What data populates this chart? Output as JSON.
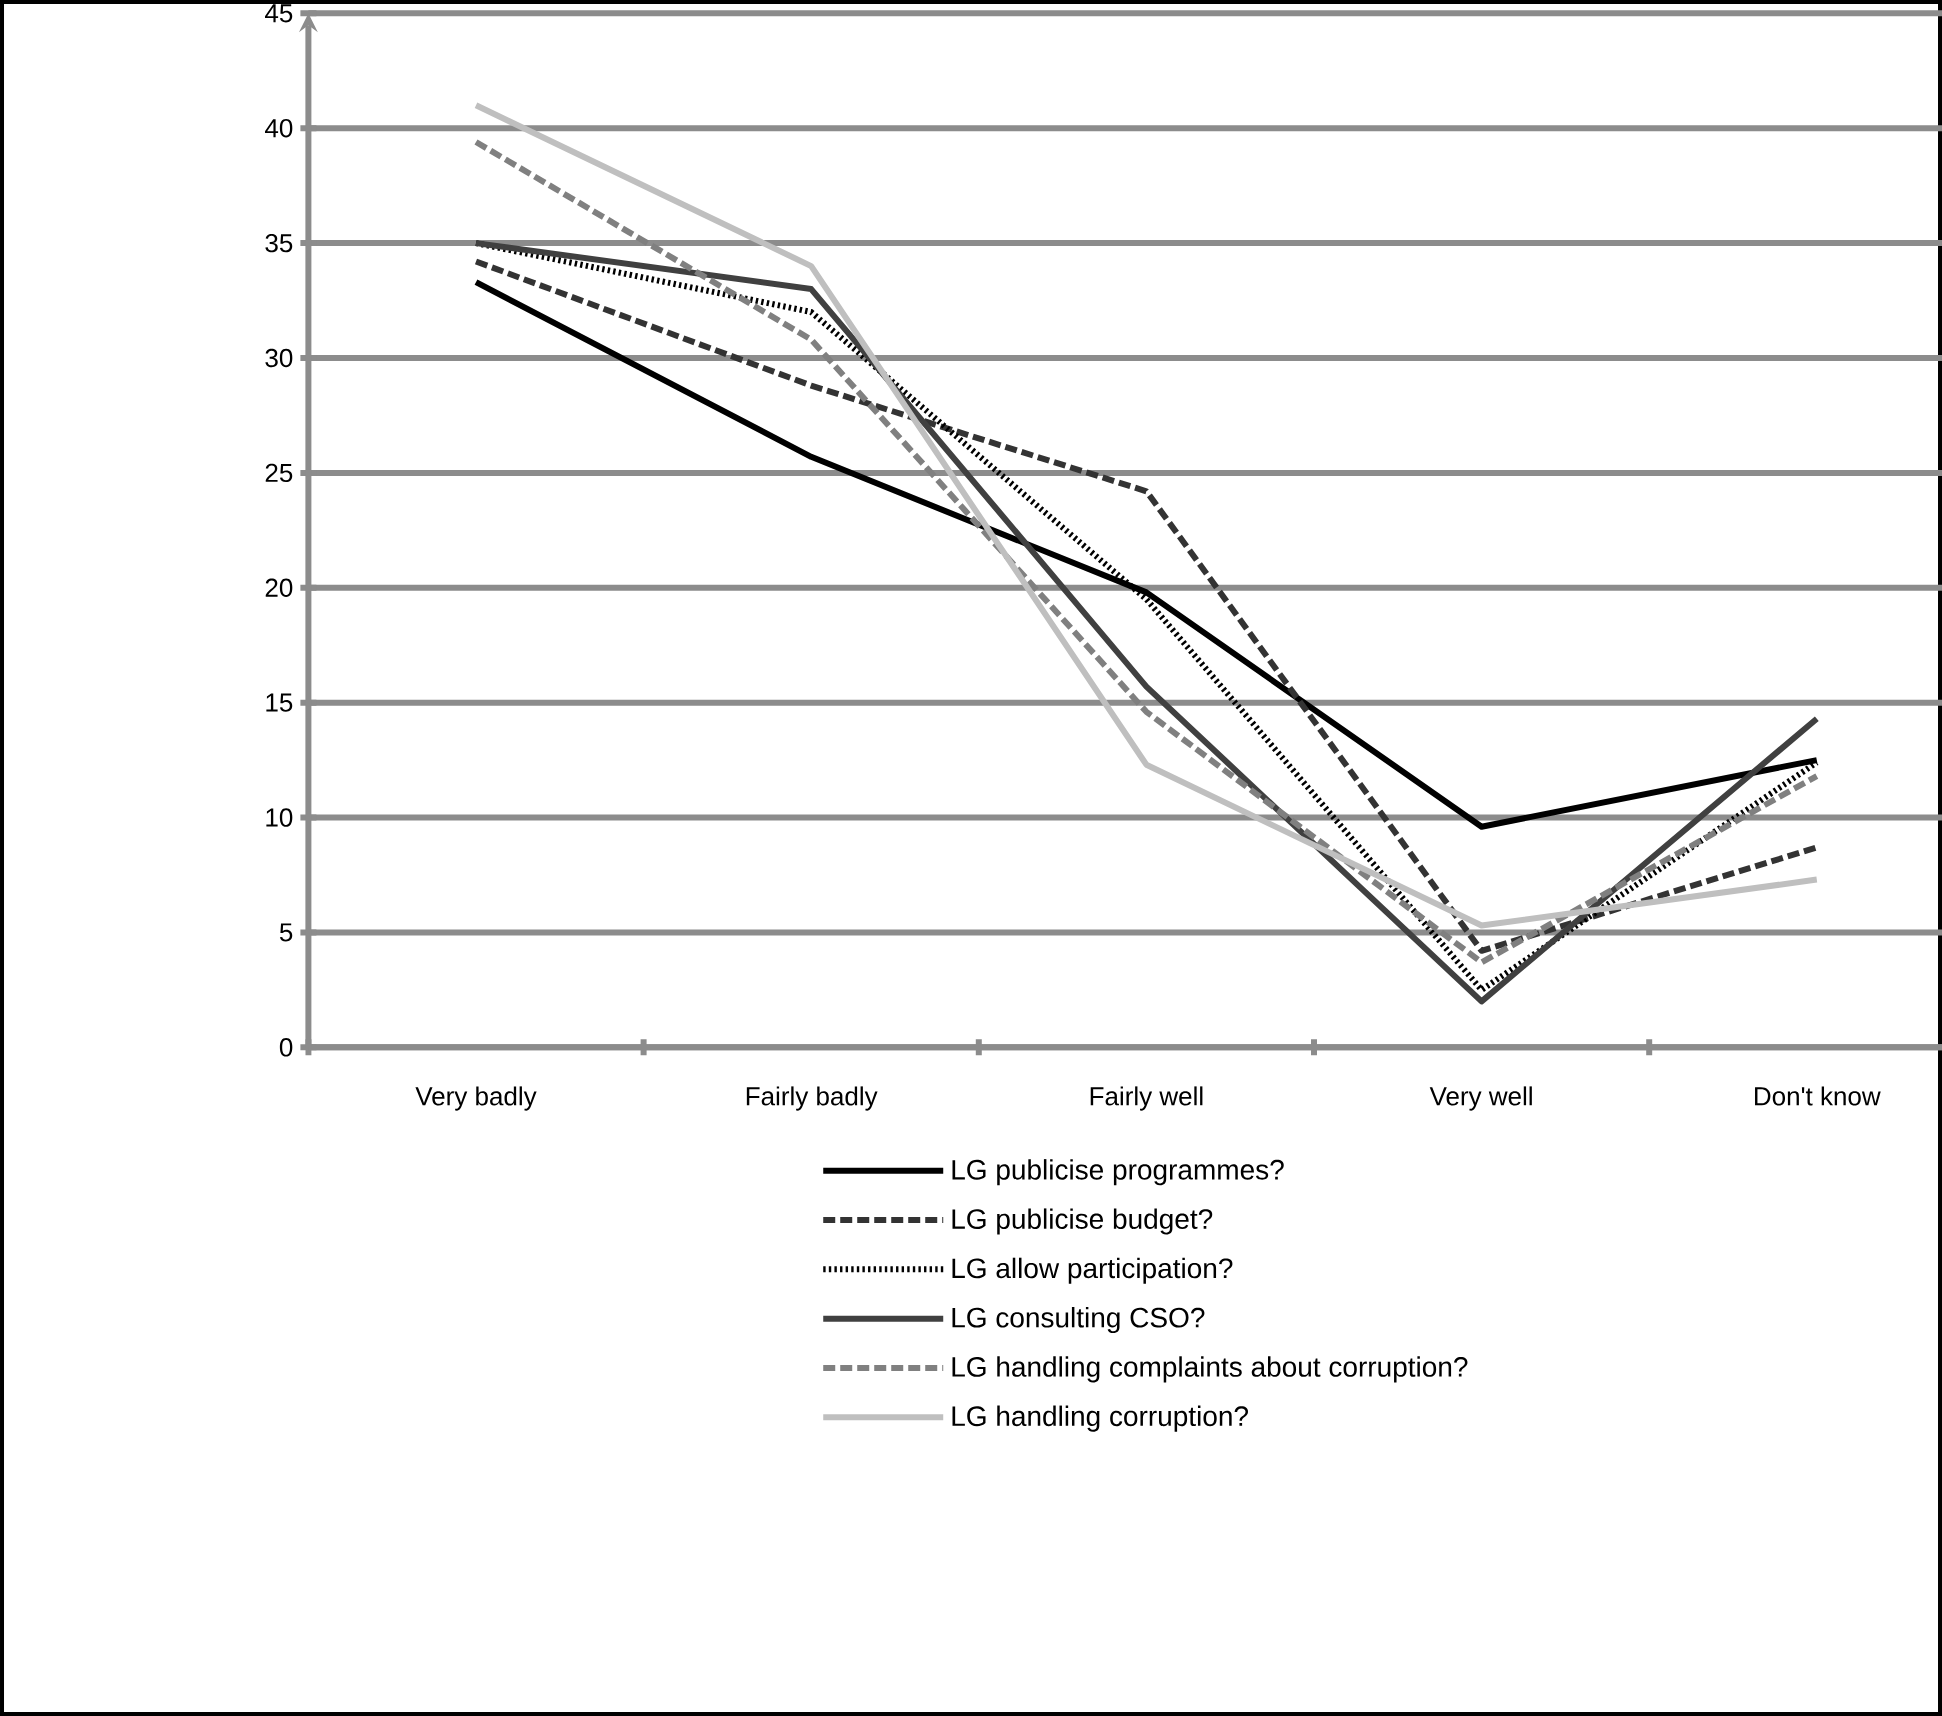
{
  "chart_data": {
    "type": "line",
    "categories": [
      "Very badly",
      "Fairly badly",
      "Fairly well",
      "Very well",
      "Don't know"
    ],
    "series": [
      {
        "name": "LG publicise programmes?",
        "color": "#000000",
        "line_style": "solid",
        "values": [
          33.3,
          25.7,
          19.8,
          9.6,
          12.5
        ]
      },
      {
        "name": "LG publicise budget?",
        "color": "#333333",
        "line_style": "dashed",
        "values": [
          34.2,
          28.8,
          24.2,
          4.2,
          8.7
        ]
      },
      {
        "name": "LG allow participation?",
        "color": "#000000",
        "line_style": "dotted",
        "values": [
          35.0,
          32.0,
          19.5,
          2.5,
          12.4
        ]
      },
      {
        "name": "LG consulting CSO?",
        "color": "#404040",
        "line_style": "solid",
        "values": [
          35.0,
          33.0,
          15.7,
          2.0,
          14.3
        ]
      },
      {
        "name": "LG handling complaints about corruption?",
        "color": "#808080",
        "line_style": "dashed",
        "values": [
          39.4,
          30.8,
          14.6,
          3.7,
          11.8
        ]
      },
      {
        "name": "LG handling corruption?",
        "color": "#bfbfbf",
        "line_style": "solid",
        "values": [
          41.0,
          34.0,
          12.3,
          5.3,
          7.3
        ]
      }
    ],
    "ylim": [
      0,
      45
    ],
    "yticks": [
      0,
      5,
      10,
      15,
      20,
      25,
      30,
      35,
      40,
      45
    ],
    "grid": "y",
    "legend": "bottom",
    "marker": "none"
  }
}
